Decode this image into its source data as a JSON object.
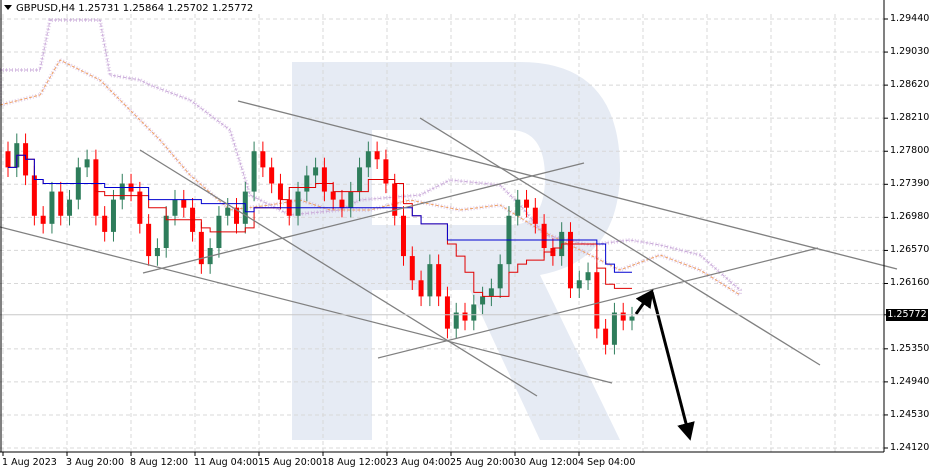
{
  "header": {
    "symbol": "GBPUSD,H4",
    "open": "1.25731",
    "high": "1.25864",
    "low": "1.25702",
    "close": "1.25772",
    "title_text": "GBPUSD,H4  1.25731 1.25864 1.25702 1.25772"
  },
  "colors": {
    "bull_candle": "#2e7d5b",
    "bear_candle": "#ff0000",
    "tenkan": "#e00000",
    "kijun": "#0000d0",
    "senkou_a": "#f0a060",
    "senkou_b": "#c8a8d8",
    "trendline": "#808080",
    "arrow": "#000000",
    "grid": "#d8d8d8",
    "watermark": "#e6ebf4"
  },
  "chart_data": {
    "type": "candlestick",
    "title": "GBPUSD,H4",
    "ohlc_last": {
      "open": 1.25731,
      "high": 1.25864,
      "low": 1.25702,
      "close": 1.25772
    },
    "current_price": "1.25772",
    "ylim": [
      1.2412,
      1.2964
    ],
    "y_ticks": [
      "1.29440",
      "1.29030",
      "1.28620",
      "1.28210",
      "1.27800",
      "1.27390",
      "1.26980",
      "1.26570",
      "1.26160",
      "1.25772",
      "1.25350",
      "1.24940",
      "1.24530",
      "1.24120"
    ],
    "x_ticks": [
      "1 Aug 2023",
      "3 Aug 20:00",
      "8 Aug 12:00",
      "11 Aug 04:00",
      "15 Aug 20:00",
      "18 Aug 12:00",
      "23 Aug 04:00",
      "25 Aug 20:00",
      "30 Aug 12:00",
      "4 Sep 04:00"
    ],
    "indicators": [
      "Ichimoku Kinko Hyo (Tenkan-sen red, Kijun-sen blue, Kumo cloud dotted)"
    ],
    "grid": true,
    "annotations": [
      "Converging gray trendlines (triangle/wedge pattern)",
      "Black arrow up to ~1.2620 (retest of broken support)",
      "Black arrow down to ~1.2412 (target)"
    ],
    "approx_closes": [
      1.276,
      1.279,
      1.275,
      1.27,
      1.269,
      1.273,
      1.27,
      1.272,
      1.276,
      1.277,
      1.27,
      1.268,
      1.272,
      1.274,
      1.273,
      1.269,
      1.265,
      1.266,
      1.27,
      1.272,
      1.271,
      1.268,
      1.264,
      1.266,
      1.27,
      1.271,
      1.269,
      1.273,
      1.278,
      1.276,
      1.274,
      1.272,
      1.27,
      1.273,
      1.275,
      1.276,
      1.273,
      1.272,
      1.271,
      1.273,
      1.276,
      1.278,
      1.277,
      1.274,
      1.27,
      1.265,
      1.262,
      1.26,
      1.264,
      1.26,
      1.256,
      1.258,
      1.257,
      1.259,
      1.26,
      1.261,
      1.264,
      1.27,
      1.272,
      1.271,
      1.269,
      1.266,
      1.265,
      1.268,
      1.261,
      1.262,
      1.263,
      1.256,
      1.254,
      1.258,
      1.257,
      1.2575
    ]
  }
}
